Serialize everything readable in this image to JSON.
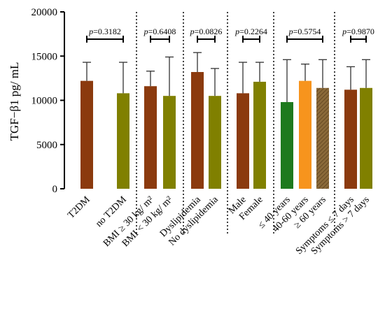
{
  "chart_data": {
    "type": "bar",
    "ylabel": "TGF−β1 pg/ mL",
    "ylim": [
      0,
      20000
    ],
    "yticks": [
      0,
      5000,
      10000,
      15000,
      20000
    ],
    "grid": false,
    "bars": [
      {
        "label": "T2DM",
        "value": 12200,
        "err": 2100,
        "color": "#8B3A0E",
        "pattern": "solid"
      },
      {
        "label": "no T2DM",
        "value": 10800,
        "err": 3500,
        "color": "#808000",
        "pattern": "solid"
      },
      {
        "label": "BMI ≥ 30 kg/ m²",
        "value": 11600,
        "err": 1700,
        "color": "#8B3A0E",
        "pattern": "solid"
      },
      {
        "label": "BMI < 30 kg/ m²",
        "value": 10500,
        "err": 4400,
        "color": "#808000",
        "pattern": "solid"
      },
      {
        "label": "Dyslipidemia",
        "value": 13200,
        "err": 2200,
        "color": "#8B3A0E",
        "pattern": "solid"
      },
      {
        "label": "No dyslipidemia",
        "value": 10500,
        "err": 3100,
        "color": "#808000",
        "pattern": "solid"
      },
      {
        "label": "Male",
        "value": 10800,
        "err": 3500,
        "color": "#8B3A0E",
        "pattern": "solid"
      },
      {
        "label": "Female",
        "value": 12100,
        "err": 2200,
        "color": "#808000",
        "pattern": "solid"
      },
      {
        "label": "≤ 40 years",
        "value": 9800,
        "err": 4800,
        "color": "#1E7A1E",
        "pattern": "solid"
      },
      {
        "label": "40-60 years",
        "value": 12200,
        "err": 1900,
        "color": "#F7941D",
        "pattern": "solid"
      },
      {
        "label": "≥ 60 years",
        "value": 11400,
        "err": 3200,
        "color": "#8B6A3A",
        "pattern": "hatched"
      },
      {
        "label": "Symptoms ≤ 7 days",
        "value": 11200,
        "err": 2600,
        "color": "#8B3A0E",
        "pattern": "solid"
      },
      {
        "label": "Symptoms > 7 days",
        "value": 11400,
        "err": 3200,
        "color": "#808000",
        "pattern": "solid"
      }
    ],
    "groups": [
      {
        "bars": [
          0,
          1
        ],
        "p_prefix": "p",
        "p_value": "=0.3182"
      },
      {
        "bars": [
          2,
          3
        ],
        "p_prefix": "p",
        "p_value": "=0.6408"
      },
      {
        "bars": [
          4,
          5
        ],
        "p_prefix": "p",
        "p_value": "=0.0826"
      },
      {
        "bars": [
          6,
          7
        ],
        "p_prefix": "p",
        "p_value": "=0.2264"
      },
      {
        "bars": [
          8,
          9,
          10
        ],
        "p_prefix": "p",
        "p_value": "=0.5754"
      },
      {
        "bars": [
          11,
          12
        ],
        "p_prefix": "p",
        "p_value": "=0.9870"
      }
    ]
  }
}
